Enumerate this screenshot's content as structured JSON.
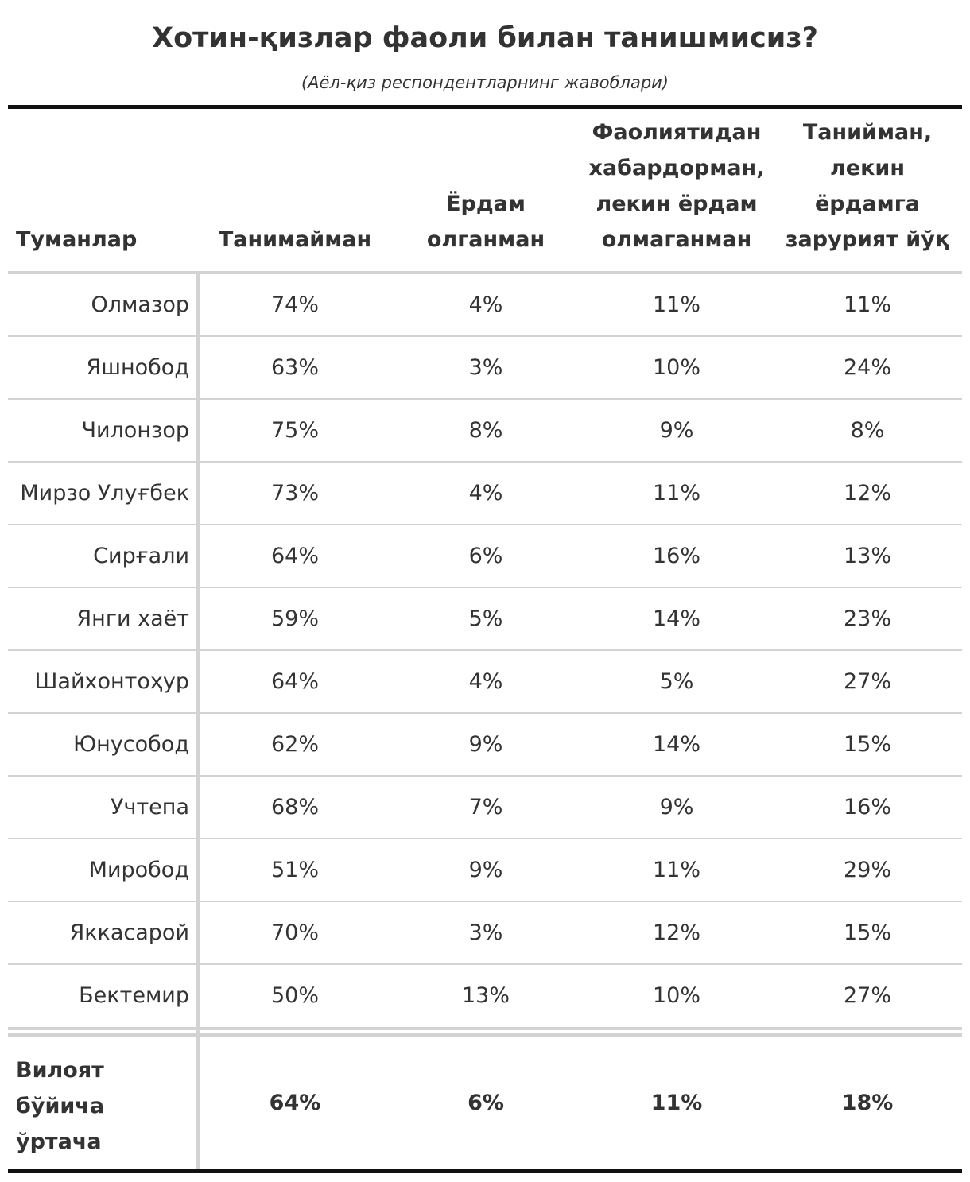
{
  "chart_data": {
    "type": "table",
    "title": "Хотин-қизлар фаоли билан танишмисиз?",
    "subtitle": "(Аёл-қиз респондентларнинг жавоблари)",
    "columns": [
      "Туманлар",
      "Танимайман",
      "Ёрдам олганман",
      "Фаолиятидан хабардорман, лекин ёрдам олмаганман",
      "Танийман, лекин ёрдамга зарурият йўқ"
    ],
    "header_lines": [
      [
        "Туманлар"
      ],
      [
        "Танимайман"
      ],
      [
        "Ёрдам",
        "олганман"
      ],
      [
        "Фаолиятидан",
        "хабардорман,",
        "лекин ёрдам",
        "олмаганман"
      ],
      [
        "Танийман,",
        "лекин",
        "ёрдамга",
        "зарурият йўқ"
      ]
    ],
    "rows": [
      [
        "Олмазор",
        "74%",
        "4%",
        "11%",
        "11%"
      ],
      [
        "Яшнобод",
        "63%",
        "3%",
        "10%",
        "24%"
      ],
      [
        "Чилонзор",
        "75%",
        "8%",
        "9%",
        "8%"
      ],
      [
        "Мирзо Улуғбек",
        "73%",
        "4%",
        "11%",
        "12%"
      ],
      [
        "Сирғали",
        "64%",
        "6%",
        "16%",
        "13%"
      ],
      [
        "Янги хаёт",
        "59%",
        "5%",
        "14%",
        "23%"
      ],
      [
        "Шайхонтоҳур",
        "64%",
        "4%",
        "5%",
        "27%"
      ],
      [
        "Юнусобод",
        "62%",
        "9%",
        "14%",
        "15%"
      ],
      [
        "Учтепа",
        "68%",
        "7%",
        "9%",
        "16%"
      ],
      [
        "Миробод",
        "51%",
        "9%",
        "11%",
        "29%"
      ],
      [
        "Яккасарой",
        "70%",
        "3%",
        "12%",
        "15%"
      ],
      [
        "Бектемир",
        "50%",
        "13%",
        "10%",
        "27%"
      ]
    ],
    "summary": {
      "label_lines": [
        "Вилоят",
        "бўйича",
        "ўртача"
      ],
      "values": [
        "64%",
        "6%",
        "11%",
        "18%"
      ]
    }
  }
}
